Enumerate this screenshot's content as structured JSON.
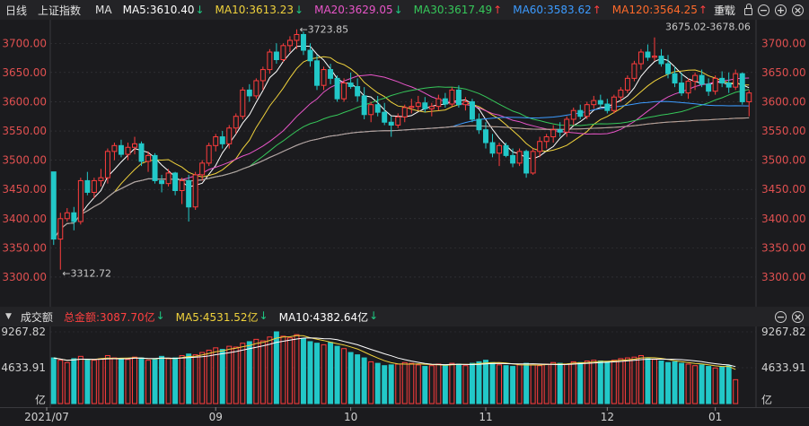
{
  "price_bar": {
    "period": "日线",
    "index_name": "上证指数",
    "ma_label": "MA",
    "items": [
      {
        "text": "MA5:3610.40",
        "arrow": "↓",
        "color": "#ffffff",
        "arrow_color": "#1ec882"
      },
      {
        "text": "MA10:3613.23",
        "arrow": "↓",
        "color": "#f0d23c",
        "arrow_color": "#1ec882"
      },
      {
        "text": "MA20:3629.05",
        "arrow": "↓",
        "color": "#e855c8",
        "arrow_color": "#1ec882"
      },
      {
        "text": "MA30:3617.49",
        "arrow": "↑",
        "color": "#36c85a",
        "arrow_color": "#ff4040"
      },
      {
        "text": "MA60:3583.62",
        "arrow": "↑",
        "color": "#3c9bff",
        "arrow_color": "#ff4040"
      },
      {
        "text": "MA120:3564.25",
        "arrow": "↑",
        "color": "#ff6a2a",
        "arrow_color": "#ff4040"
      }
    ],
    "more": "M",
    "reset_label": "重载"
  },
  "volume_bar": {
    "label": "成交额",
    "items": [
      {
        "text": "总金额:3087.70亿",
        "arrow": "↓",
        "color": "#ff4040",
        "arrow_color": "#1ec882"
      },
      {
        "text": "MA5:4531.52亿",
        "arrow": "↓",
        "color": "#f0d23c",
        "arrow_color": "#1ec882"
      },
      {
        "text": "MA10:4382.64亿",
        "arrow": "↓",
        "color": "#ffffff",
        "arrow_color": "#1ec882"
      }
    ]
  },
  "annotations": {
    "low": "←3312.72",
    "high": "←3723.85",
    "range": "3675.02-3678.06"
  },
  "colors": {
    "up": "#ff3d3d",
    "down": "#22c8c8",
    "grid": "#3a3a3e",
    "axis": "#e05050"
  },
  "chart_data": {
    "type": "candlestick",
    "title": "上证指数 日线",
    "x_ticks": [
      "2021/07",
      "09",
      "10",
      "11",
      "12",
      "01"
    ],
    "y_ticks": [
      "3300.00",
      "3350.00",
      "3400.00",
      "3450.00",
      "3500.00",
      "3550.00",
      "3600.00",
      "3650.00",
      "3700.00"
    ],
    "ylim": [
      3280,
      3728
    ],
    "volume_ticks": [
      "9267.82",
      "4633.91",
      "亿"
    ],
    "volume_ylim": [
      0,
      9267.82
    ],
    "ohlc": [
      [
        3480,
        3480,
        3355,
        3365
      ],
      [
        3365,
        3410,
        3312.72,
        3400
      ],
      [
        3400,
        3418,
        3395,
        3410
      ],
      [
        3410,
        3420,
        3380,
        3395
      ],
      [
        3395,
        3470,
        3390,
        3465
      ],
      [
        3465,
        3480,
        3440,
        3445
      ],
      [
        3445,
        3470,
        3435,
        3465
      ],
      [
        3465,
        3485,
        3455,
        3470
      ],
      [
        3470,
        3520,
        3460,
        3515
      ],
      [
        3515,
        3530,
        3500,
        3525
      ],
      [
        3525,
        3535,
        3505,
        3510
      ],
      [
        3510,
        3530,
        3500,
        3522
      ],
      [
        3522,
        3540,
        3510,
        3528
      ],
      [
        3528,
        3532,
        3490,
        3498
      ],
      [
        3498,
        3515,
        3480,
        3508
      ],
      [
        3508,
        3512,
        3460,
        3465
      ],
      [
        3465,
        3475,
        3445,
        3460
      ],
      [
        3460,
        3485,
        3455,
        3478
      ],
      [
        3478,
        3480,
        3440,
        3448
      ],
      [
        3448,
        3470,
        3425,
        3465
      ],
      [
        3465,
        3475,
        3395,
        3420
      ],
      [
        3420,
        3480,
        3415,
        3475
      ],
      [
        3475,
        3500,
        3465,
        3495
      ],
      [
        3495,
        3530,
        3490,
        3525
      ],
      [
        3525,
        3545,
        3515,
        3540
      ],
      [
        3540,
        3550,
        3520,
        3528
      ],
      [
        3528,
        3560,
        3520,
        3555
      ],
      [
        3555,
        3580,
        3545,
        3575
      ],
      [
        3575,
        3625,
        3570,
        3620
      ],
      [
        3620,
        3630,
        3600,
        3610
      ],
      [
        3610,
        3640,
        3605,
        3636
      ],
      [
        3636,
        3660,
        3620,
        3655
      ],
      [
        3655,
        3690,
        3648,
        3685
      ],
      [
        3685,
        3700,
        3665,
        3672
      ],
      [
        3672,
        3700,
        3668,
        3696
      ],
      [
        3696,
        3712,
        3685,
        3705
      ],
      [
        3705,
        3723.85,
        3690,
        3715
      ],
      [
        3715,
        3720,
        3680,
        3688
      ],
      [
        3688,
        3700,
        3660,
        3670
      ],
      [
        3670,
        3680,
        3620,
        3628
      ],
      [
        3628,
        3660,
        3620,
        3655
      ],
      [
        3655,
        3665,
        3630,
        3640
      ],
      [
        3640,
        3645,
        3600,
        3605
      ],
      [
        3605,
        3640,
        3600,
        3632
      ],
      [
        3632,
        3650,
        3622,
        3626
      ],
      [
        3626,
        3640,
        3600,
        3610
      ],
      [
        3610,
        3625,
        3570,
        3578
      ],
      [
        3578,
        3600,
        3565,
        3595
      ],
      [
        3595,
        3610,
        3575,
        3582
      ],
      [
        3582,
        3598,
        3560,
        3565
      ],
      [
        3565,
        3575,
        3540,
        3560
      ],
      [
        3560,
        3580,
        3555,
        3574
      ],
      [
        3574,
        3595,
        3565,
        3590
      ],
      [
        3590,
        3605,
        3580,
        3592
      ],
      [
        3592,
        3610,
        3585,
        3598
      ],
      [
        3598,
        3608,
        3582,
        3588
      ],
      [
        3588,
        3598,
        3575,
        3592
      ],
      [
        3592,
        3612,
        3585,
        3605
      ],
      [
        3605,
        3615,
        3590,
        3596
      ],
      [
        3596,
        3625,
        3592,
        3620
      ],
      [
        3620,
        3628,
        3590,
        3595
      ],
      [
        3595,
        3608,
        3585,
        3600
      ],
      [
        3600,
        3605,
        3565,
        3570
      ],
      [
        3570,
        3580,
        3545,
        3552
      ],
      [
        3552,
        3565,
        3520,
        3530
      ],
      [
        3530,
        3545,
        3505,
        3512
      ],
      [
        3512,
        3530,
        3490,
        3525
      ],
      [
        3525,
        3530,
        3505,
        3508
      ],
      [
        3508,
        3520,
        3488,
        3495
      ],
      [
        3495,
        3520,
        3490,
        3515
      ],
      [
        3515,
        3518,
        3470,
        3478
      ],
      [
        3478,
        3520,
        3475,
        3515
      ],
      [
        3515,
        3540,
        3505,
        3532
      ],
      [
        3532,
        3545,
        3520,
        3540
      ],
      [
        3540,
        3560,
        3530,
        3552
      ],
      [
        3552,
        3565,
        3540,
        3548
      ],
      [
        3548,
        3575,
        3540,
        3570
      ],
      [
        3570,
        3590,
        3560,
        3585
      ],
      [
        3585,
        3595,
        3570,
        3575
      ],
      [
        3575,
        3600,
        3570,
        3595
      ],
      [
        3595,
        3610,
        3588,
        3602
      ],
      [
        3602,
        3612,
        3590,
        3596
      ],
      [
        3596,
        3605,
        3580,
        3585
      ],
      [
        3585,
        3612,
        3580,
        3608
      ],
      [
        3608,
        3625,
        3600,
        3620
      ],
      [
        3620,
        3645,
        3615,
        3640
      ],
      [
        3640,
        3670,
        3635,
        3665
      ],
      [
        3665,
        3690,
        3655,
        3685
      ],
      [
        3685,
        3698,
        3670,
        3676
      ],
      [
        3676,
        3710,
        3670,
        3678
      ],
      [
        3678,
        3690,
        3660,
        3665
      ],
      [
        3665,
        3680,
        3640,
        3648
      ],
      [
        3648,
        3660,
        3625,
        3632
      ],
      [
        3632,
        3650,
        3610,
        3615
      ],
      [
        3615,
        3640,
        3605,
        3635
      ],
      [
        3635,
        3650,
        3620,
        3645
      ],
      [
        3645,
        3655,
        3625,
        3630
      ],
      [
        3630,
        3640,
        3610,
        3618
      ],
      [
        3618,
        3645,
        3612,
        3640
      ],
      [
        3640,
        3652,
        3625,
        3632
      ],
      [
        3632,
        3650,
        3615,
        3625
      ],
      [
        3625,
        3655,
        3620,
        3648
      ],
      [
        3648,
        3650,
        3595,
        3600
      ],
      [
        3600,
        3620,
        3575,
        3615
      ]
    ],
    "volume": [
      5900,
      5600,
      5300,
      5800,
      6100,
      5700,
      5600,
      5800,
      6200,
      5900,
      5800,
      5700,
      6000,
      5900,
      5600,
      5700,
      6100,
      5800,
      5900,
      6200,
      6400,
      6300,
      6600,
      6900,
      7200,
      7000,
      7400,
      7300,
      7800,
      8000,
      8300,
      8100,
      8600,
      9267.82,
      8700,
      8500,
      8900,
      8400,
      8000,
      7800,
      7600,
      7900,
      7400,
      7100,
      6600,
      6300,
      5900,
      5400,
      5200,
      4900,
      5000,
      5100,
      5300,
      5200,
      5000,
      4800,
      4900,
      5100,
      5000,
      5200,
      5100,
      4900,
      5200,
      5400,
      5600,
      5300,
      5000,
      4900,
      4800,
      5000,
      5200,
      5000,
      4900,
      5100,
      5300,
      5200,
      5100,
      5400,
      5300,
      5500,
      5600,
      5500,
      5400,
      5600,
      5800,
      5900,
      6000,
      6200,
      5800,
      5700,
      5500,
      5300,
      5400,
      5200,
      5100,
      4900,
      5000,
      4800,
      4600,
      4700,
      4900,
      3087.7
    ],
    "series": [
      {
        "name": "MA5",
        "color": "#ffffff"
      },
      {
        "name": "MA10",
        "color": "#f0d23c"
      },
      {
        "name": "MA20",
        "color": "#e855c8"
      },
      {
        "name": "MA30",
        "color": "#36c85a"
      },
      {
        "name": "MA60",
        "color": "#3c9bff"
      },
      {
        "name": "MA120",
        "color": "#ff6a2a"
      },
      {
        "name": "MA250",
        "color": "#a8a8a8"
      }
    ],
    "volume_series": [
      {
        "name": "MA5",
        "color": "#f0d23c"
      },
      {
        "name": "MA10",
        "color": "#ffffff"
      }
    ]
  }
}
